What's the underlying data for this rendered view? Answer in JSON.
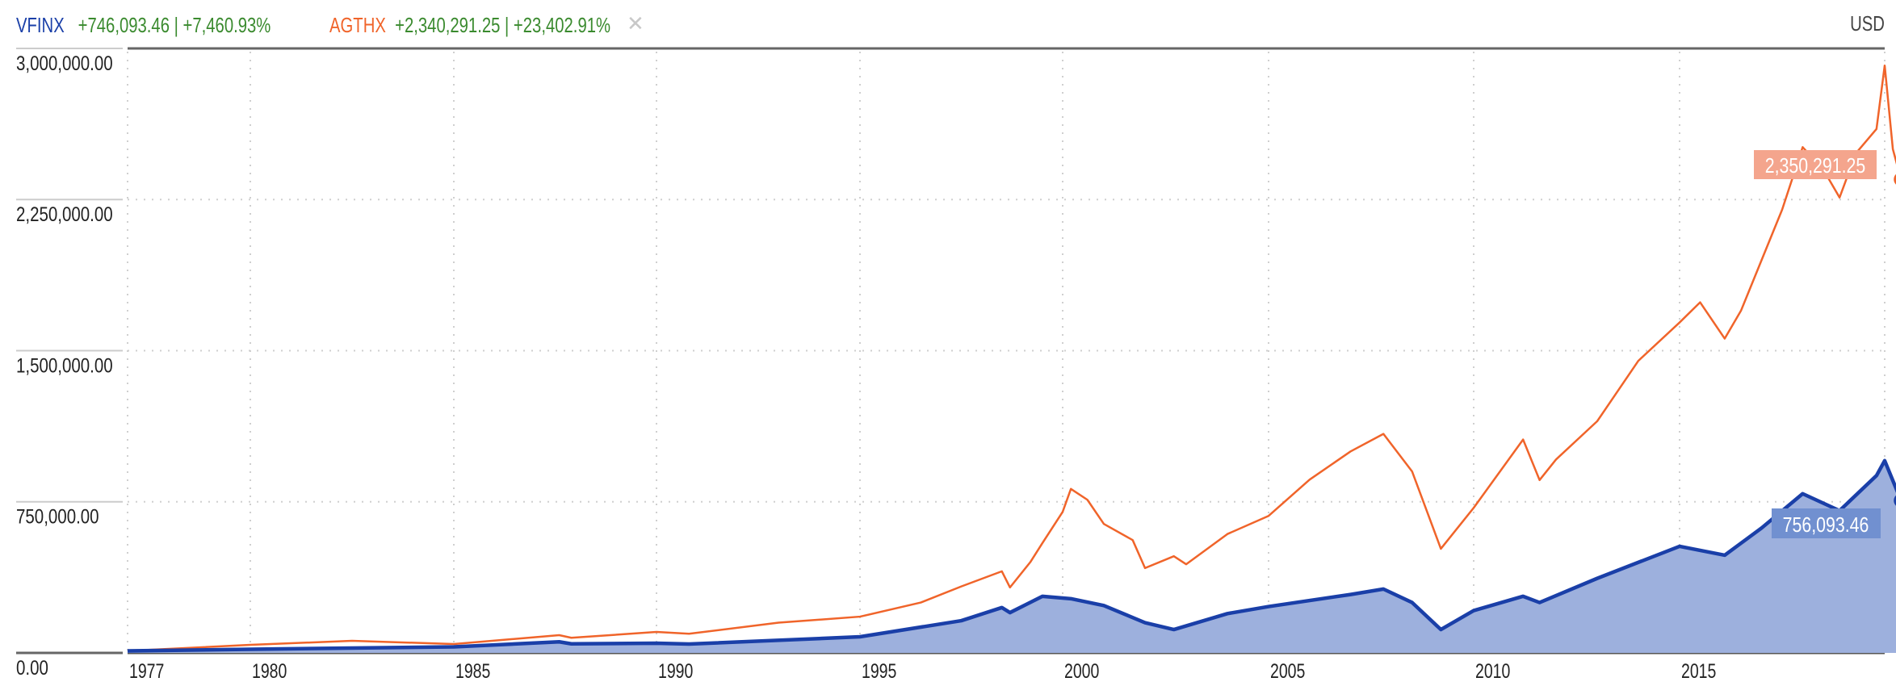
{
  "legend": {
    "series1": {
      "symbol": "VFINX",
      "change": "+746,093.46 | +7,460.93%",
      "color": "#1a3fa8"
    },
    "series2": {
      "symbol": "AGTHX",
      "change": "+2,340,291.25 | +23,402.91%",
      "color": "#f0642a"
    },
    "close_icon": "close-icon"
  },
  "currency": "USD",
  "last_labels": {
    "agthx": "2,350,291.25",
    "vfinx": "756,093.46"
  },
  "colors": {
    "vfinx_line": "#1a3fa8",
    "vfinx_fill": "#9db0dd",
    "vfinx_label_bg": "#7190d0",
    "agthx_line": "#f0642a",
    "agthx_label_bg": "#f4a58d",
    "change_positive": "#3a8a2e"
  },
  "chart_data": {
    "type": "line",
    "title": "",
    "xlabel": "",
    "ylabel": "USD",
    "ylim": [
      0,
      3000000
    ],
    "y_ticks": [
      "3,000,000.00",
      "2,250,000.00",
      "1,500,000.00",
      "750,000.00",
      "0.00"
    ],
    "x_ticks": [
      "1977",
      "1980",
      "1985",
      "1990",
      "1995",
      "2000",
      "2005",
      "2010",
      "2015"
    ],
    "grid": true,
    "legend_position": "top-left",
    "series": [
      {
        "name": "AGTHX",
        "style": "line",
        "x": [
          1977.0,
          1980.0,
          1982.5,
          1985.0,
          1987.6,
          1987.9,
          1990.0,
          1990.8,
          1993.0,
          1995.0,
          1996.5,
          1997.5,
          1998.5,
          1998.7,
          1999.2,
          1999.5,
          2000.0,
          2000.2,
          2000.6,
          2001.0,
          2001.7,
          2002.0,
          2002.7,
          2003.0,
          2004.0,
          2005.0,
          2006.0,
          2007.0,
          2007.8,
          2008.5,
          2009.2,
          2010.0,
          2011.2,
          2011.6,
          2012.0,
          2013.0,
          2014.0,
          2015.0,
          2015.5,
          2016.1,
          2016.5,
          2017.0,
          2017.5,
          2018.0,
          2018.5,
          2018.9,
          2019.3,
          2019.8,
          2020.0,
          2020.2,
          2020.4
        ],
        "values": [
          10000,
          40000,
          60000,
          44000,
          88000,
          75000,
          104000,
          95000,
          150000,
          180000,
          250000,
          330000,
          405000,
          325000,
          450000,
          545000,
          700000,
          814000,
          760000,
          640000,
          560000,
          421000,
          480000,
          440000,
          590000,
          680000,
          860000,
          1000000,
          1087000,
          900000,
          517000,
          720000,
          1059000,
          858000,
          960000,
          1150000,
          1450000,
          1640000,
          1740000,
          1560000,
          1700000,
          1950000,
          2200000,
          2510000,
          2400000,
          2260000,
          2480000,
          2600000,
          2915000,
          2500000,
          2350291.25
        ]
      },
      {
        "name": "VFINX",
        "style": "area",
        "x": [
          1977.0,
          1980.0,
          1985.0,
          1987.6,
          1987.9,
          1990.0,
          1990.8,
          1995.0,
          1997.5,
          1998.5,
          1998.7,
          1999.5,
          2000.2,
          2001.0,
          2002.0,
          2002.7,
          2004.0,
          2005.0,
          2007.0,
          2007.8,
          2008.5,
          2009.2,
          2010.0,
          2011.2,
          2011.6,
          2013.0,
          2015.0,
          2016.1,
          2017.0,
          2018.0,
          2018.9,
          2019.8,
          2020.0,
          2020.4
        ],
        "values": [
          10000,
          18000,
          30000,
          55000,
          45000,
          48000,
          44000,
          80000,
          160000,
          225000,
          200000,
          281000,
          269000,
          235000,
          150000,
          116000,
          195000,
          230000,
          290000,
          317000,
          250000,
          116000,
          210000,
          281000,
          250000,
          370000,
          529000,
          485000,
          620000,
          790000,
          706000,
          880000,
          954000,
          756093.46
        ]
      }
    ]
  }
}
